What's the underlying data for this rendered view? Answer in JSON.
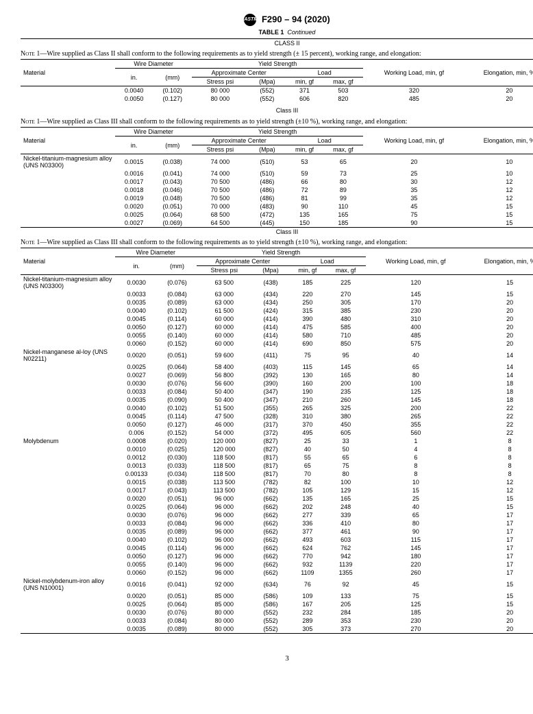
{
  "header": {
    "designation": "F290 – 94 (2020)",
    "logo_text": "ASTM"
  },
  "table_title": {
    "label": "TABLE 1",
    "cont": "Continued"
  },
  "labels": {
    "material": "Material",
    "wire_diameter": "Wire Diameter",
    "yield_strength": "Yield Strength",
    "in": "in.",
    "mm": "(mm)",
    "approx_center": "Approximate Center",
    "load": "Load",
    "stress_psi": "Stress psi",
    "mpa": "(Mpa)",
    "min_gf": "min, gf",
    "max_gf": "max, gf",
    "working_load": "Working Load, min, gf",
    "elongation": "Elongation, min, %",
    "class2": "CLASS II",
    "class3": "Class III"
  },
  "notes": {
    "class2": "Wire supplied as Class II shall conform to the following requirements as to yield strength (± 15 percent), working range, and elongation:",
    "class3": "Wire supplied as Class III shall conform to the following requirements as to yield strength (±10 %), working range, and elongation:"
  },
  "sections": [
    {
      "rows": [
        {
          "mat": "",
          "in": "0.0040",
          "mm": "(0.102)",
          "psi": "80  000",
          "mpa": "(552)",
          "min": "371",
          "max": "503",
          "wl": "320",
          "el": "20"
        },
        {
          "mat": "",
          "in": "0.0050",
          "mm": "(0.127)",
          "psi": "80  000",
          "mpa": "(552)",
          "min": "606",
          "max": "820",
          "wl": "485",
          "el": "20"
        }
      ]
    },
    {
      "rows": [
        {
          "mat": "Nickel-titanium-magnesium alloy (UNS N03300)",
          "in": "0.0015",
          "mm": "(0.038)",
          "psi": "74  000",
          "mpa": "(510)",
          "min": "53",
          "max": "65",
          "wl": "20",
          "el": "10"
        },
        {
          "mat": "",
          "in": "0.0016",
          "mm": "(0.041)",
          "psi": "74  000",
          "mpa": "(510)",
          "min": "59",
          "max": "73",
          "wl": "25",
          "el": "10"
        },
        {
          "mat": "",
          "in": "0.0017",
          "mm": "(0.043)",
          "psi": "70  500",
          "mpa": "(486)",
          "min": "66",
          "max": "80",
          "wl": "30",
          "el": "12"
        },
        {
          "mat": "",
          "in": "0.0018",
          "mm": "(0.046)",
          "psi": "70  500",
          "mpa": "(486)",
          "min": "72",
          "max": "89",
          "wl": "35",
          "el": "12"
        },
        {
          "mat": "",
          "in": "0.0019",
          "mm": "(0.048)",
          "psi": "70  500",
          "mpa": "(486)",
          "min": "81",
          "max": "99",
          "wl": "35",
          "el": "12"
        },
        {
          "mat": "",
          "in": "0.0020",
          "mm": "(0.051)",
          "psi": "70  000",
          "mpa": "(483)",
          "min": "90",
          "max": "110",
          "wl": "45",
          "el": "15"
        },
        {
          "mat": "",
          "in": "0.0025",
          "mm": "(0.064)",
          "psi": "68  500",
          "mpa": "(472)",
          "min": "135",
          "max": "165",
          "wl": "75",
          "el": "15"
        },
        {
          "mat": "",
          "in": "0.0027",
          "mm": "(0.069)",
          "psi": "64  500",
          "mpa": "(445)",
          "min": "150",
          "max": "185",
          "wl": "90",
          "el": "15"
        }
      ]
    },
    {
      "rows": [
        {
          "mat": "Nickel-titanium-magnesium alloy (UNS N03300)",
          "in": "0.0030",
          "mm": "(0.076)",
          "psi": "63  500",
          "mpa": "(438)",
          "min": "185",
          "max": "225",
          "wl": "120",
          "el": "15"
        },
        {
          "mat": "",
          "in": "0.0033",
          "mm": "(0.084)",
          "psi": "63  000",
          "mpa": "(434)",
          "min": "220",
          "max": "270",
          "wl": "145",
          "el": "15"
        },
        {
          "mat": "",
          "in": "0.0035",
          "mm": "(0.089)",
          "psi": "63  000",
          "mpa": "(434)",
          "min": "250",
          "max": "305",
          "wl": "170",
          "el": "20"
        },
        {
          "mat": "",
          "in": "0.0040",
          "mm": "(0.102)",
          "psi": "61  500",
          "mpa": "(424)",
          "min": "315",
          "max": "385",
          "wl": "230",
          "el": "20"
        },
        {
          "mat": "",
          "in": "0.0045",
          "mm": "(0.114)",
          "psi": "60  000",
          "mpa": "(414)",
          "min": "390",
          "max": "480",
          "wl": "310",
          "el": "20"
        },
        {
          "mat": "",
          "in": "0.0050",
          "mm": "(0.127)",
          "psi": "60  000",
          "mpa": "(414)",
          "min": "475",
          "max": "585",
          "wl": "400",
          "el": "20"
        },
        {
          "mat": "",
          "in": "0.0055",
          "mm": "(0.140)",
          "psi": "60  000",
          "mpa": "(414)",
          "min": "580",
          "max": "710",
          "wl": "485",
          "el": "20"
        },
        {
          "mat": "",
          "in": "0.0060",
          "mm": "(0.152)",
          "psi": "60  000",
          "mpa": "(414)",
          "min": "690",
          "max": "850",
          "wl": "575",
          "el": "20"
        },
        {
          "mat": "Nickel-manganese al-loy (UNS N02211)",
          "in": "0.0020",
          "mm": "(0.051)",
          "psi": "59  600",
          "mpa": "(411)",
          "min": "75",
          "max": "95",
          "wl": "40",
          "el": "14"
        },
        {
          "mat": "",
          "in": "0.0025",
          "mm": "(0.064)",
          "psi": "58  400",
          "mpa": "(403)",
          "min": "115",
          "max": "145",
          "wl": "65",
          "el": "14"
        },
        {
          "mat": "",
          "in": "0.0027",
          "mm": "(0.069)",
          "psi": "56  800",
          "mpa": "(392)",
          "min": "130",
          "max": "165",
          "wl": "80",
          "el": "14"
        },
        {
          "mat": "",
          "in": "0.0030",
          "mm": "(0.076)",
          "psi": "56  600",
          "mpa": "(390)",
          "min": "160",
          "max": "200",
          "wl": "100",
          "el": "18"
        },
        {
          "mat": "",
          "in": "0.0033",
          "mm": "(0.084)",
          "psi": "50  400",
          "mpa": "(347)",
          "min": "190",
          "max": "235",
          "wl": "125",
          "el": "18"
        },
        {
          "mat": "",
          "in": "0.0035",
          "mm": "(0.090)",
          "psi": "50  400",
          "mpa": "(347)",
          "min": "210",
          "max": "260",
          "wl": "145",
          "el": "18"
        },
        {
          "mat": "",
          "in": "0.0040",
          "mm": "(0.102)",
          "psi": "51  500",
          "mpa": "(355)",
          "min": "265",
          "max": "325",
          "wl": "200",
          "el": "22"
        },
        {
          "mat": "",
          "in": "0.0045",
          "mm": "(0.114)",
          "psi": "47  500",
          "mpa": "(328)",
          "min": "310",
          "max": "380",
          "wl": "265",
          "el": "22"
        },
        {
          "mat": "",
          "in": "0.0050",
          "mm": "(0.127)",
          "psi": "46  000",
          "mpa": "(317)",
          "min": "370",
          "max": "450",
          "wl": "355",
          "el": "22"
        },
        {
          "mat": "",
          "in": "0.006",
          "mm": "(0.152)",
          "psi": "54  000",
          "mpa": "(372)",
          "min": "495",
          "max": "605",
          "wl": "560",
          "el": "22"
        },
        {
          "mat": "Molybdenum",
          "in": "0.0008",
          "mm": "(0.020)",
          "psi": "120  000",
          "mpa": "(827)",
          "min": "25",
          "max": "33",
          "wl": "1",
          "el": "8"
        },
        {
          "mat": "",
          "in": "0.0010",
          "mm": "(0.025)",
          "psi": "120  000",
          "mpa": "(827)",
          "min": "40",
          "max": "50",
          "wl": "4",
          "el": "8"
        },
        {
          "mat": "",
          "in": "0.0012",
          "mm": "(0.030)",
          "psi": "118  500",
          "mpa": "(817)",
          "min": "55",
          "max": "65",
          "wl": "6",
          "el": "8"
        },
        {
          "mat": "",
          "in": "0.0013",
          "mm": "(0.033)",
          "psi": "118  500",
          "mpa": "(817)",
          "min": "65",
          "max": "75",
          "wl": "8",
          "el": "8"
        },
        {
          "mat": "",
          "in": "0.00133",
          "mm": "(0.034)",
          "psi": "118  500",
          "mpa": "(817)",
          "min": "70",
          "max": "80",
          "wl": "8",
          "el": "8"
        },
        {
          "mat": "",
          "in": "0.0015",
          "mm": "(0.038)",
          "psi": "113  500",
          "mpa": "(782)",
          "min": "82",
          "max": "100",
          "wl": "10",
          "el": "12"
        },
        {
          "mat": "",
          "in": "0.0017",
          "mm": "(0.043)",
          "psi": "113  500",
          "mpa": "(782)",
          "min": "105",
          "max": "129",
          "wl": "15",
          "el": "12"
        },
        {
          "mat": "",
          "in": "0.0020",
          "mm": "(0.051)",
          "psi": "96  000",
          "mpa": "(662)",
          "min": "135",
          "max": "165",
          "wl": "25",
          "el": "15"
        },
        {
          "mat": "",
          "in": "0.0025",
          "mm": "(0.064)",
          "psi": "96  000",
          "mpa": "(662)",
          "min": "202",
          "max": "248",
          "wl": "40",
          "el": "15"
        },
        {
          "mat": "",
          "in": "0.0030",
          "mm": "(0.076)",
          "psi": "96  000",
          "mpa": "(662)",
          "min": "277",
          "max": "339",
          "wl": "65",
          "el": "17"
        },
        {
          "mat": "",
          "in": "0.0033",
          "mm": "(0.084)",
          "psi": "96  000",
          "mpa": "(662)",
          "min": "336",
          "max": "410",
          "wl": "80",
          "el": "17"
        },
        {
          "mat": "",
          "in": "0.0035",
          "mm": "(0.089)",
          "psi": "96  000",
          "mpa": "(662)",
          "min": "377",
          "max": "461",
          "wl": "90",
          "el": "17"
        },
        {
          "mat": "",
          "in": "0.0040",
          "mm": "(0.102)",
          "psi": "96  000",
          "mpa": "(662)",
          "min": "493",
          "max": "603",
          "wl": "115",
          "el": "17"
        },
        {
          "mat": "",
          "in": "0.0045",
          "mm": "(0.114)",
          "psi": "96  000",
          "mpa": "(662)",
          "min": "624",
          "max": "762",
          "wl": "145",
          "el": "17"
        },
        {
          "mat": "",
          "in": "0.0050",
          "mm": "(0.127)",
          "psi": "96  000",
          "mpa": "(662)",
          "min": "770",
          "max": "942",
          "wl": "180",
          "el": "17"
        },
        {
          "mat": "",
          "in": "0.0055",
          "mm": "(0.140)",
          "psi": "96  000",
          "mpa": "(662)",
          "min": "932",
          "max": "1139",
          "wl": "220",
          "el": "17"
        },
        {
          "mat": "",
          "in": "0.0060",
          "mm": "(0.152)",
          "psi": "96  000",
          "mpa": "(662)",
          "min": "1109",
          "max": "1355",
          "wl": "260",
          "el": "17"
        },
        {
          "mat": "Nickel-molybdenum-iron alloy  (UNS N10001)",
          "in": "0.0016",
          "mm": "(0.041)",
          "psi": "92  000",
          "mpa": "(634)",
          "min": "76",
          "max": "92",
          "wl": "45",
          "el": "15"
        },
        {
          "mat": "",
          "in": "0.0020",
          "mm": "(0.051)",
          "psi": "85  000",
          "mpa": "(586)",
          "min": "109",
          "max": "133",
          "wl": "75",
          "el": "15"
        },
        {
          "mat": "",
          "in": "0.0025",
          "mm": "(0.064)",
          "psi": "85  000",
          "mpa": "(586)",
          "min": "167",
          "max": "205",
          "wl": "125",
          "el": "15"
        },
        {
          "mat": "",
          "in": "0.0030",
          "mm": "(0.076)",
          "psi": "80  000",
          "mpa": "(552)",
          "min": "232",
          "max": "284",
          "wl": "185",
          "el": "20"
        },
        {
          "mat": "",
          "in": "0.0033",
          "mm": "(0.084)",
          "psi": "80  000",
          "mpa": "(552)",
          "min": "289",
          "max": "353",
          "wl": "230",
          "el": "20"
        },
        {
          "mat": "",
          "in": "0.0035",
          "mm": "(0.089)",
          "psi": "80  000",
          "mpa": "(552)",
          "min": "305",
          "max": "373",
          "wl": "270",
          "el": "20"
        }
      ]
    }
  ],
  "page": "3"
}
